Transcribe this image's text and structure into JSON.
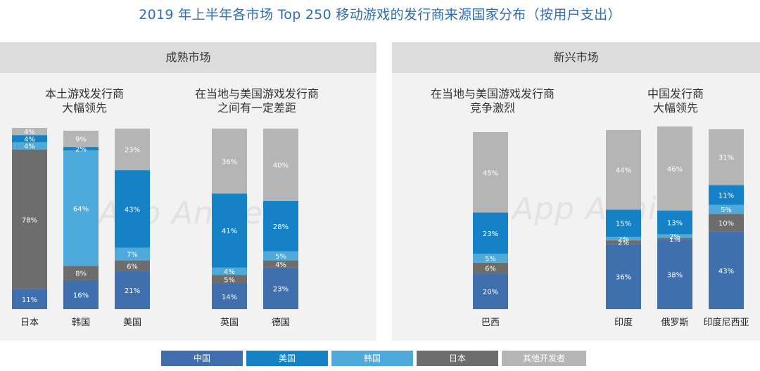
{
  "title": "2019 年上半年各市场 Top 250 移动游戏的发行商来源国家分布（按用户支出）",
  "watermark": "App Annie",
  "panels": [
    {
      "label": "成熟市场",
      "subtitles": [
        "本土游戏发行商\n大幅领先",
        "在当地与美国游戏发行商\n之间有一定差距"
      ]
    },
    {
      "label": "新兴市场",
      "subtitles": [
        "在当地与美国游戏发行商\n竞争激烈",
        "中国发行商\n大幅领先"
      ]
    }
  ],
  "legend": [
    {
      "name": "中国",
      "color": "#3f6fad"
    },
    {
      "name": "美国",
      "color": "#1482c5"
    },
    {
      "name": "韩国",
      "color": "#4eaadb"
    },
    {
      "name": "日本",
      "color": "#6d6d6d"
    },
    {
      "name": "其他开发者",
      "color": "#b5b5b5"
    }
  ],
  "chart_data": {
    "type": "bar",
    "stacked": true,
    "unit": "%",
    "categories": [
      "日本",
      "韩国",
      "美国",
      "英国",
      "德国",
      "巴西",
      "印度",
      "俄罗斯",
      "印度尼西亚"
    ],
    "series": [
      {
        "name": "中国",
        "color": "#3f6fad",
        "values": [
          11,
          16,
          21,
          14,
          23,
          20,
          36,
          38,
          43
        ],
        "labels": [
          "11%",
          "16%",
          "21%",
          "14%",
          "23%",
          "20%",
          "36%",
          "38%",
          "43%"
        ]
      },
      {
        "name": "日本",
        "color": "#6d6d6d",
        "values": [
          78,
          8,
          6,
          5,
          4,
          6,
          2,
          1,
          10
        ],
        "labels": [
          "78%",
          "8%",
          "6%",
          "5%",
          "4%",
          "6%",
          "2%",
          "1%",
          "10%"
        ]
      },
      {
        "name": "韩国",
        "color": "#4eaadb",
        "values": [
          4,
          64,
          7,
          4,
          5,
          5,
          2,
          2,
          5
        ],
        "labels": [
          "4%",
          "64%",
          "7%",
          "4%",
          "5%",
          "5%",
          "2%",
          "2%",
          "5%"
        ]
      },
      {
        "name": "美国",
        "color": "#1482c5",
        "values": [
          4,
          2,
          43,
          41,
          28,
          23,
          15,
          13,
          11
        ],
        "labels": [
          "4%",
          "2%",
          "43%",
          "41%",
          "28%",
          "23%",
          "15%",
          "13%",
          "11%"
        ]
      },
      {
        "name": "其他开发者",
        "color": "#b5b5b5",
        "values": [
          4,
          9,
          23,
          36,
          40,
          45,
          44,
          46,
          31
        ],
        "labels": [
          "4%",
          "9%",
          "23%",
          "36%",
          "40%",
          "45%",
          "44%",
          "46%",
          "31%"
        ]
      }
    ],
    "ylim": [
      0,
      100
    ]
  }
}
